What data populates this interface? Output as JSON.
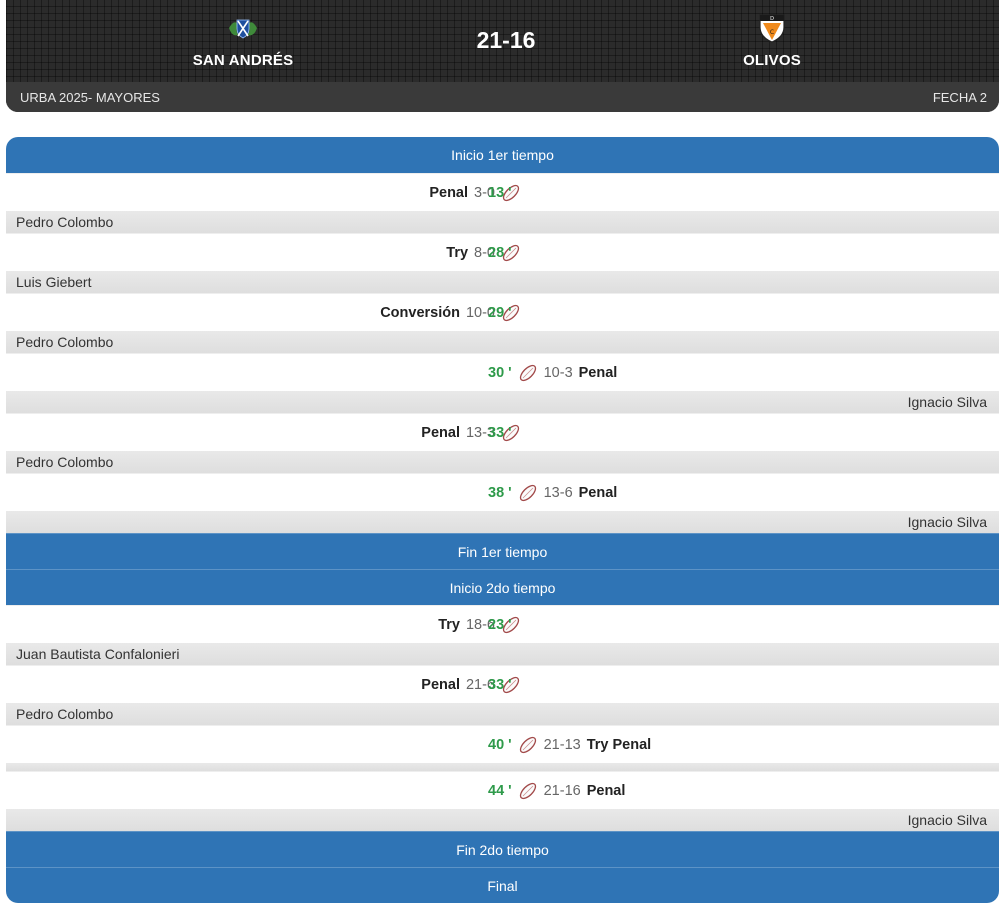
{
  "match": {
    "home_team": "SAN ANDRÉS",
    "away_team": "OLIVOS",
    "score": "21-16",
    "competition": "URBA 2025- MAYORES",
    "round": "FECHA 2"
  },
  "colors": {
    "period_bar": "#2f74b5",
    "minute": "#2e9a4a",
    "player_bar": "#e3e3e3"
  },
  "timeline": [
    {
      "kind": "period",
      "label": "Inicio 1er tiempo"
    },
    {
      "kind": "event",
      "side": "home",
      "type": "Penal",
      "score": "3-0",
      "minute": "13 '",
      "player": "Pedro Colombo"
    },
    {
      "kind": "event",
      "side": "home",
      "type": "Try",
      "score": "8-0",
      "minute": "28 '",
      "player": "Luis Giebert"
    },
    {
      "kind": "event",
      "side": "home",
      "type": "Conversión",
      "score": "10-0",
      "minute": "29 '",
      "player": "Pedro Colombo"
    },
    {
      "kind": "event",
      "side": "away",
      "type": "Penal",
      "score": "10-3",
      "minute": "30 '",
      "player": "Ignacio Silva"
    },
    {
      "kind": "event",
      "side": "home",
      "type": "Penal",
      "score": "13-3",
      "minute": "33 '",
      "player": "Pedro Colombo"
    },
    {
      "kind": "event",
      "side": "away",
      "type": "Penal",
      "score": "13-6",
      "minute": "38 '",
      "player": "Ignacio Silva"
    },
    {
      "kind": "period",
      "label": "Fin 1er tiempo"
    },
    {
      "kind": "period",
      "label": "Inicio 2do tiempo"
    },
    {
      "kind": "event",
      "side": "home",
      "type": "Try",
      "score": "18-6",
      "minute": "23 '",
      "player": "Juan Bautista Confalonieri"
    },
    {
      "kind": "event",
      "side": "home",
      "type": "Penal",
      "score": "21-6",
      "minute": "33 '",
      "player": "Pedro Colombo"
    },
    {
      "kind": "event",
      "side": "away",
      "type": "Try Penal",
      "score": "21-13",
      "minute": "40 '",
      "player": ""
    },
    {
      "kind": "event",
      "side": "away",
      "type": "Penal",
      "score": "21-16",
      "minute": "44 '",
      "player": "Ignacio Silva"
    },
    {
      "kind": "period",
      "label": "Fin 2do tiempo"
    },
    {
      "kind": "period",
      "label": "Final"
    }
  ]
}
